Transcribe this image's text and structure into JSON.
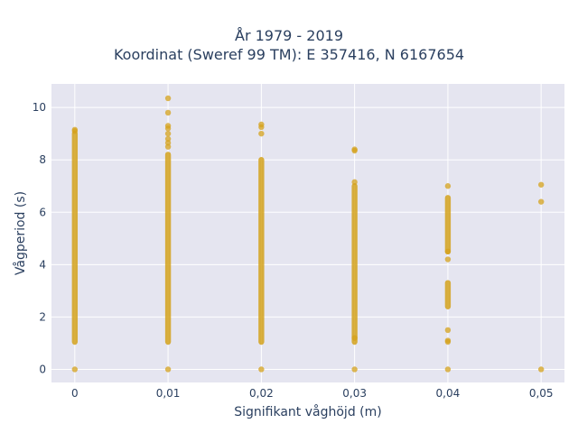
{
  "chart_data": {
    "type": "scatter",
    "title_lines": [
      "År 1979 - 2019",
      "Koordinat (Sweref 99 TM): E 357416, N 6167654"
    ],
    "xlabel": "Signifikant våghöjd (m)",
    "ylabel": "Vågperiod (s)",
    "xlim": [
      -0.0025,
      0.0525
    ],
    "ylim": [
      -0.5,
      10.9
    ],
    "x_ticks": [
      0,
      0.01,
      0.02,
      0.03,
      0.04,
      0.05
    ],
    "x_tick_labels": [
      "0",
      "0,01",
      "0,02",
      "0,03",
      "0,04",
      "0,05"
    ],
    "y_ticks": [
      0,
      2,
      4,
      6,
      8,
      10
    ],
    "y_tick_labels": [
      "0",
      "2",
      "4",
      "6",
      "8",
      "10"
    ],
    "grid": true,
    "legend": "none",
    "marker_color": "#d4a21c",
    "plot_bg": "#e5e5f0",
    "series": [
      {
        "x_dense_ranges": [
          {
            "x": 0,
            "y_from": 1.05,
            "y_to": 9.0
          },
          {
            "x": 0.01,
            "y_from": 1.05,
            "y_to": 8.2
          },
          {
            "x": 0.02,
            "y_from": 1.05,
            "y_to": 8.0
          },
          {
            "x": 0.03,
            "y_from": 1.05,
            "y_to": 7.0
          },
          {
            "x": 0.04,
            "y_from": 4.5,
            "y_to": 6.55
          },
          {
            "x": 0.04,
            "y_from": 2.4,
            "y_to": 3.3
          }
        ],
        "points": [
          [
            0,
            0
          ],
          [
            0,
            9.1
          ],
          [
            0,
            9.15
          ],
          [
            0.01,
            0
          ],
          [
            0.01,
            10.35
          ],
          [
            0.01,
            9.8
          ],
          [
            0.01,
            9.3
          ],
          [
            0.01,
            9.2
          ],
          [
            0.01,
            9.0
          ],
          [
            0.01,
            8.8
          ],
          [
            0.01,
            8.65
          ],
          [
            0.01,
            8.5
          ],
          [
            0.02,
            0
          ],
          [
            0.02,
            9.35
          ],
          [
            0.02,
            9.25
          ],
          [
            0.02,
            9.0
          ],
          [
            0.03,
            0
          ],
          [
            0.03,
            8.4
          ],
          [
            0.03,
            8.35
          ],
          [
            0.03,
            7.15
          ],
          [
            0.03,
            1.2
          ],
          [
            0.04,
            0
          ],
          [
            0.04,
            7.0
          ],
          [
            0.04,
            4.5
          ],
          [
            0.04,
            4.2
          ],
          [
            0.04,
            1.5
          ],
          [
            0.04,
            1.1
          ],
          [
            0.04,
            1.05
          ],
          [
            0.05,
            0
          ],
          [
            0.05,
            7.05
          ],
          [
            0.05,
            6.4
          ]
        ]
      }
    ]
  }
}
